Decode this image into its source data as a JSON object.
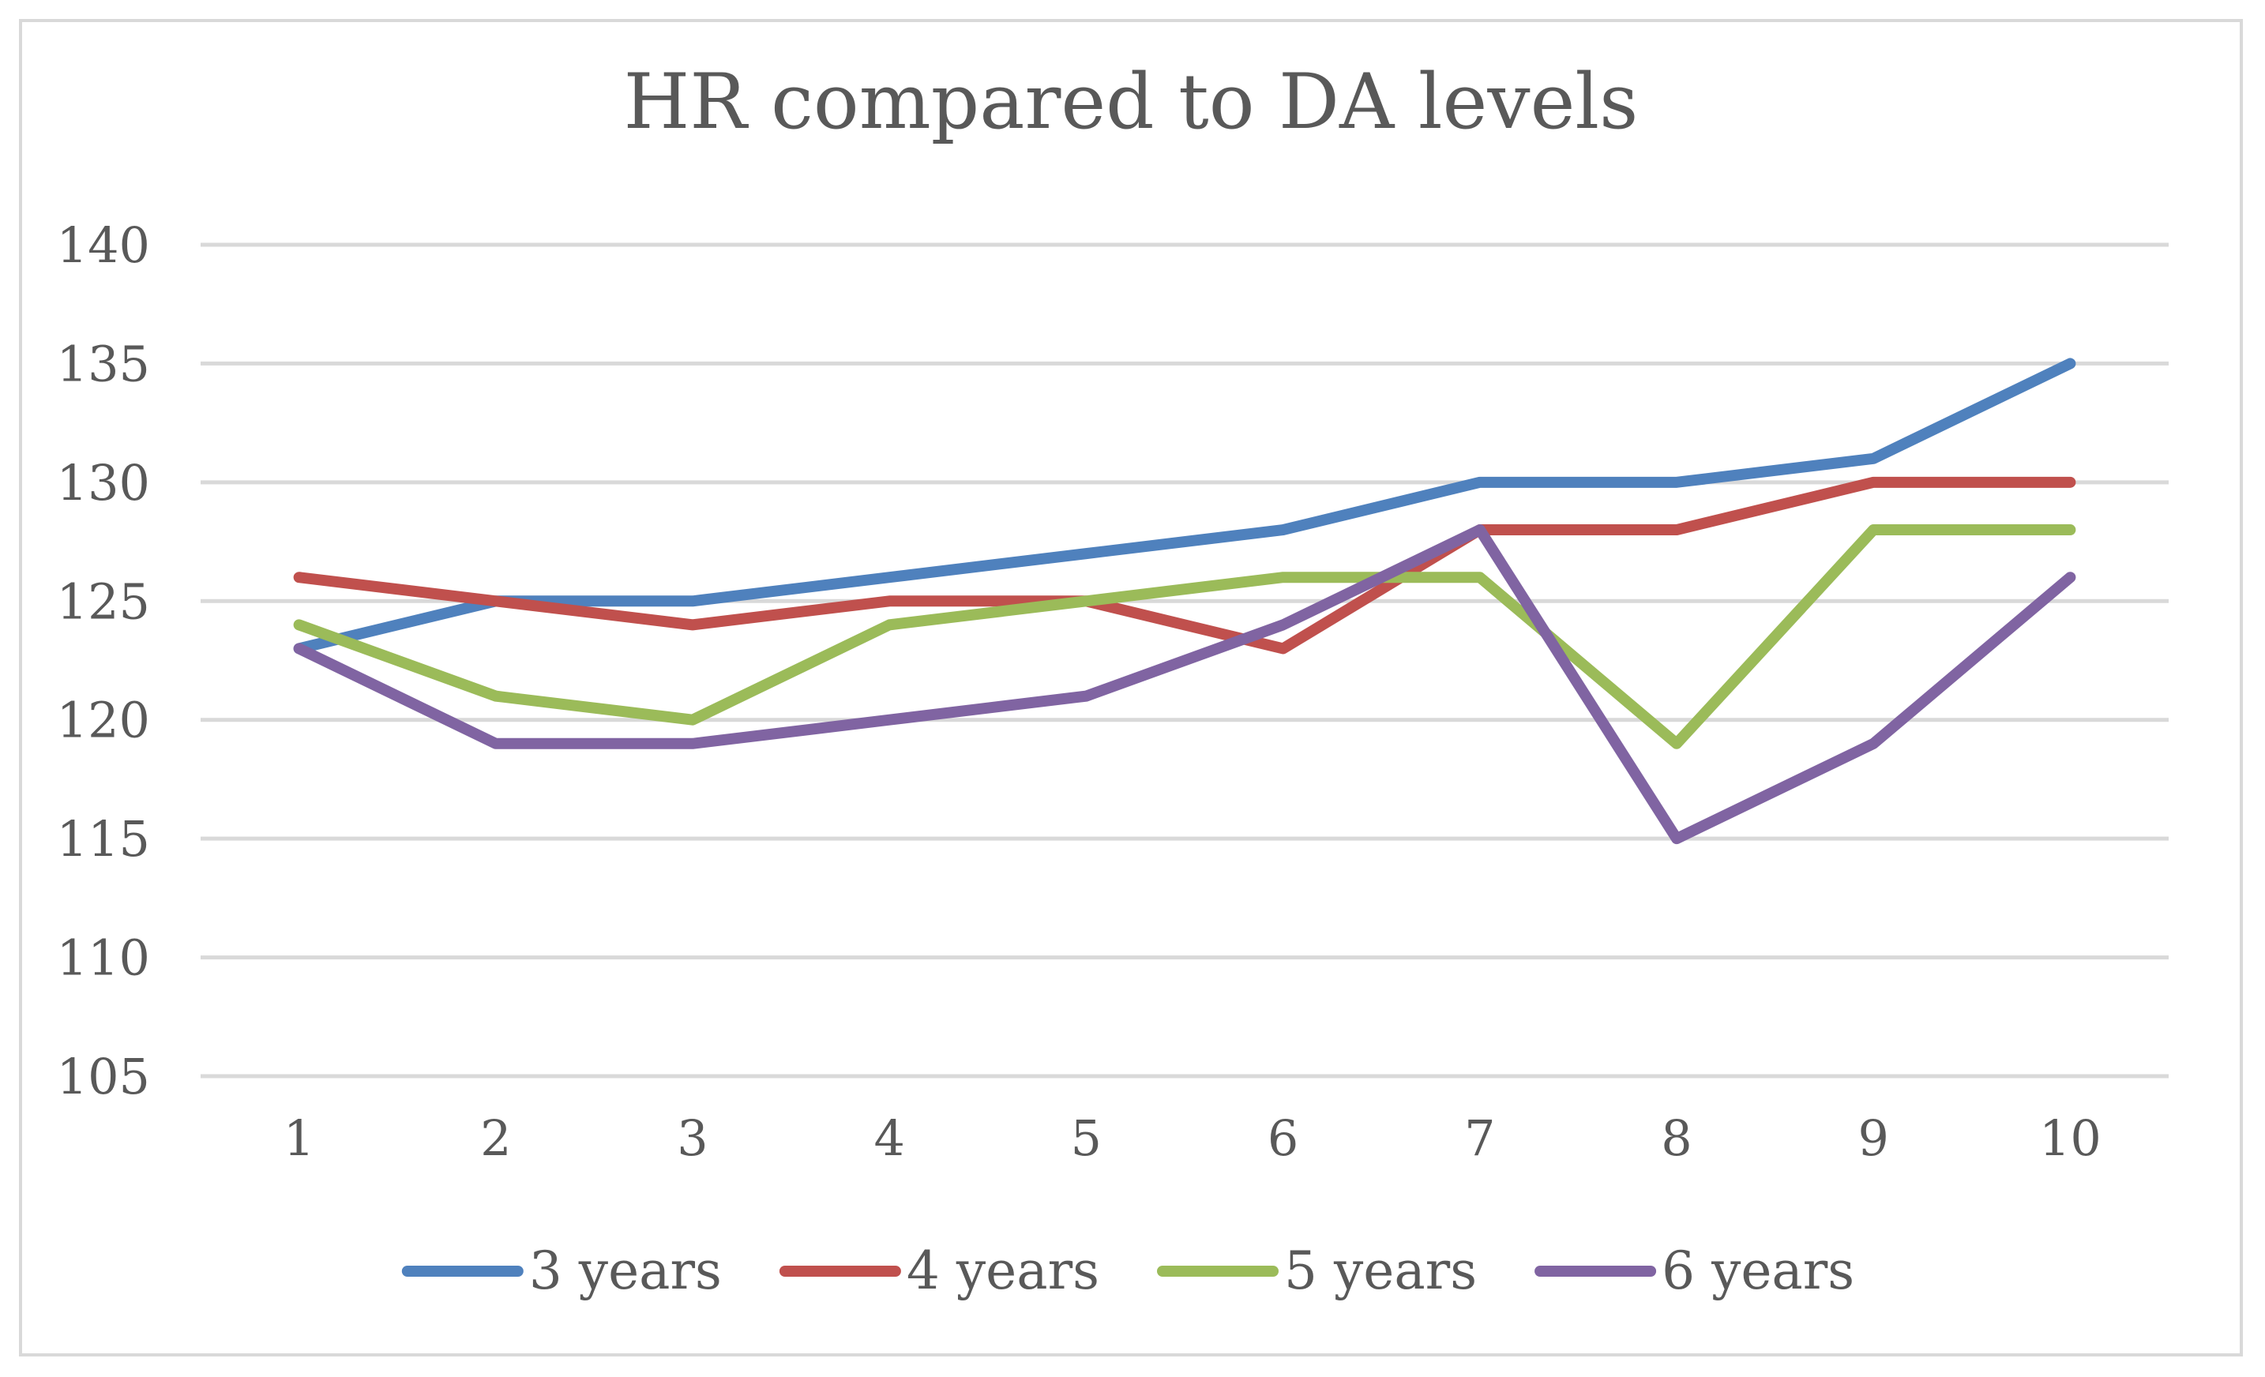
{
  "chart_data": {
    "type": "line",
    "title": "HR compared to DA levels",
    "xlabel": "",
    "ylabel": "",
    "categories": [
      "1",
      "2",
      "3",
      "4",
      "5",
      "6",
      "7",
      "8",
      "9",
      "10"
    ],
    "yticks": [
      "105",
      "110",
      "115",
      "120",
      "125",
      "130",
      "135",
      "140"
    ],
    "ylim": [
      105,
      140
    ],
    "grid": true,
    "legend_position": "bottom",
    "series": [
      {
        "name": "3 years",
        "color": "#4f81bd",
        "values": [
          123,
          125,
          125,
          126,
          127,
          128,
          130,
          130,
          131,
          135
        ]
      },
      {
        "name": "4 years",
        "color": "#c0504d",
        "values": [
          126,
          125,
          124,
          125,
          125,
          123,
          128,
          128,
          130,
          130
        ]
      },
      {
        "name": "5 years",
        "color": "#9bbb59",
        "values": [
          124,
          121,
          120,
          124,
          125,
          126,
          126,
          119,
          128,
          128
        ]
      },
      {
        "name": "6 years",
        "color": "#8064a2",
        "values": [
          123,
          119,
          119,
          120,
          121,
          124,
          128,
          115,
          119,
          126
        ]
      }
    ]
  }
}
